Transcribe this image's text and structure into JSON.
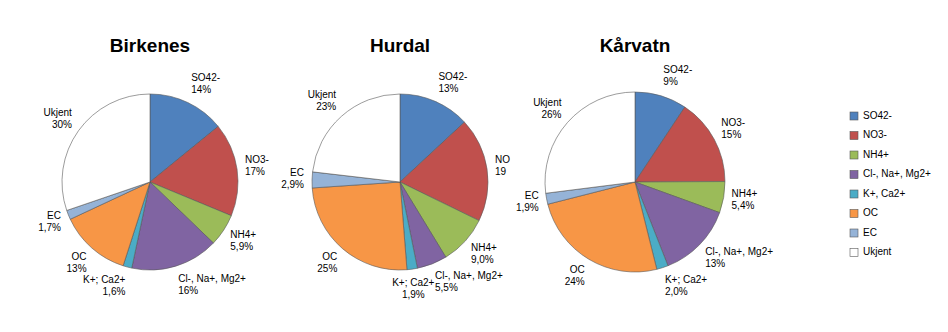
{
  "chart_data": [
    {
      "type": "pie",
      "title": "Birkenes",
      "categories": [
        "SO42-",
        "NO3-",
        "NH4+",
        "Cl-, Na+, Mg2+",
        "K+; Ca2+",
        "OC",
        "EC",
        "Ukjent"
      ],
      "values": [
        14,
        17,
        5.9,
        16,
        1.6,
        13,
        1.7,
        30
      ],
      "value_labels": [
        "14%",
        "17%",
        "5,9%",
        "16%",
        "1,6%",
        "13%",
        "1,7%",
        "30%"
      ],
      "colors": [
        "#4f81bd",
        "#c0504d",
        "#9bbb59",
        "#8064a2",
        "#4bacc6",
        "#f79646",
        "#95b3d7",
        "#ffffff"
      ],
      "data_labels": true
    },
    {
      "type": "pie",
      "title": "Hurdal",
      "categories": [
        "SO42-",
        "NO",
        "NH4+",
        "Cl-, Na+, Mg2+",
        "K+; Ca2+",
        "OC",
        "EC",
        "Ukjent"
      ],
      "values": [
        13,
        19,
        9.0,
        5.5,
        1.9,
        25,
        2.9,
        23
      ],
      "value_labels": [
        "13%",
        "19",
        "9,0%",
        "5,5%",
        "1,9%",
        "25%",
        "2,9%",
        "23%"
      ],
      "colors": [
        "#4f81bd",
        "#c0504d",
        "#9bbb59",
        "#8064a2",
        "#4bacc6",
        "#f79646",
        "#95b3d7",
        "#ffffff"
      ],
      "data_labels": true
    },
    {
      "type": "pie",
      "title": "Kårvatn",
      "categories": [
        "SO42-",
        "NO3-",
        "NH4+",
        "Cl-, Na+, Mg2+",
        "K+; Ca2+",
        "OC",
        "EC",
        "Ukjent"
      ],
      "values": [
        9,
        15,
        5.4,
        13,
        2.0,
        24,
        1.9,
        26
      ],
      "value_labels": [
        "9%",
        "15%",
        "5,4%",
        "13%",
        "2,0%",
        "24%",
        "1,9%",
        "26%"
      ],
      "colors": [
        "#4f81bd",
        "#c0504d",
        "#9bbb59",
        "#8064a2",
        "#4bacc6",
        "#f79646",
        "#95b3d7",
        "#ffffff"
      ],
      "data_labels": true
    }
  ],
  "shared_legend": {
    "labels": [
      "SO42-",
      "NO3-",
      "NH4+",
      "Cl-, Na+, Mg2+",
      "K+, Ca2+",
      "OC",
      "EC",
      "Ukjent"
    ],
    "colors": [
      "#4f81bd",
      "#c0504d",
      "#9bbb59",
      "#8064a2",
      "#4bacc6",
      "#f79646",
      "#95b3d7",
      "#ffffff"
    ]
  }
}
